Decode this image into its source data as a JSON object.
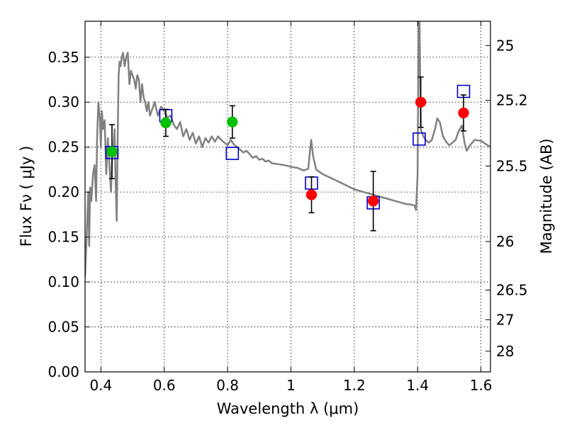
{
  "chart_data": {
    "type": "line",
    "xlabel": "Wavelength  λ (μm)",
    "ylabel": "Flux  Fν  ( μJy )",
    "y2label": "Magnitude (AB)",
    "xlim": [
      0.35,
      1.63
    ],
    "ylim": [
      0,
      0.39
    ],
    "grid": true,
    "x_ticks": [
      0.4,
      0.6,
      0.8,
      1.0,
      1.2,
      1.4,
      1.6
    ],
    "x_tick_labels": [
      "0.4",
      "0.6",
      "0.8",
      "1",
      "1.2",
      "1.4",
      "1.6"
    ],
    "y_ticks": [
      0.0,
      0.05,
      0.1,
      0.15,
      0.2,
      0.25,
      0.3,
      0.35
    ],
    "y_tick_labels": [
      "0.00",
      "0.05",
      "0.10",
      "0.15",
      "0.20",
      "0.25",
      "0.30",
      "0.35"
    ],
    "y2_ticks": [
      {
        "label": "25",
        "flux": 0.363
      },
      {
        "label": "25.2",
        "flux": 0.302
      },
      {
        "label": "25.5",
        "flux": 0.229
      },
      {
        "label": "26",
        "flux": 0.145
      },
      {
        "label": "26.5",
        "flux": 0.091
      },
      {
        "label": "27",
        "flux": 0.058
      },
      {
        "label": "28",
        "flux": 0.023
      }
    ],
    "colors": {
      "model": "#808080",
      "green_points": "#00c000",
      "red_points": "#ff0000",
      "model_boxes": "#0000cc",
      "errorbars": "#000000"
    },
    "series": [
      {
        "kind": "model-spectrum",
        "x": [
          0.35,
          0.355,
          0.36,
          0.363,
          0.366,
          0.37,
          0.375,
          0.38,
          0.385,
          0.388,
          0.392,
          0.397,
          0.4,
          0.403,
          0.407,
          0.412,
          0.417,
          0.422,
          0.427,
          0.432,
          0.436,
          0.44,
          0.443,
          0.446,
          0.45,
          0.453,
          0.456,
          0.459,
          0.462,
          0.466,
          0.47,
          0.475,
          0.48,
          0.485,
          0.49,
          0.495,
          0.5,
          0.505,
          0.51,
          0.515,
          0.52,
          0.525,
          0.53,
          0.535,
          0.54,
          0.545,
          0.55,
          0.555,
          0.56,
          0.57,
          0.58,
          0.59,
          0.6,
          0.61,
          0.62,
          0.63,
          0.64,
          0.65,
          0.66,
          0.67,
          0.68,
          0.69,
          0.7,
          0.71,
          0.72,
          0.73,
          0.74,
          0.75,
          0.76,
          0.77,
          0.78,
          0.79,
          0.8,
          0.81,
          0.82,
          0.83,
          0.84,
          0.85,
          0.86,
          0.87,
          0.88,
          0.89,
          0.9,
          0.91,
          0.92,
          0.93,
          0.94,
          0.96,
          0.98,
          1.0,
          1.02,
          1.04,
          1.055,
          1.06,
          1.064,
          1.07,
          1.08,
          1.1,
          1.13,
          1.16,
          1.2,
          1.24,
          1.28,
          1.32,
          1.36,
          1.38,
          1.39,
          1.395,
          1.4,
          1.403,
          1.406,
          1.41,
          1.418,
          1.425,
          1.435,
          1.445,
          1.455,
          1.462,
          1.47,
          1.48,
          1.49,
          1.5,
          1.51,
          1.52,
          1.53,
          1.54,
          1.548,
          1.555,
          1.565,
          1.58,
          1.6,
          1.63
        ],
        "y": [
          0.105,
          0.15,
          0.2,
          0.14,
          0.205,
          0.19,
          0.22,
          0.23,
          0.19,
          0.26,
          0.3,
          0.28,
          0.25,
          0.29,
          0.27,
          0.28,
          0.22,
          0.26,
          0.23,
          0.2,
          0.24,
          0.25,
          0.27,
          0.22,
          0.168,
          0.26,
          0.33,
          0.345,
          0.34,
          0.35,
          0.355,
          0.34,
          0.35,
          0.355,
          0.32,
          0.335,
          0.33,
          0.325,
          0.315,
          0.33,
          0.325,
          0.3,
          0.32,
          0.305,
          0.3,
          0.29,
          0.3,
          0.285,
          0.29,
          0.3,
          0.285,
          0.295,
          0.29,
          0.283,
          0.285,
          0.275,
          0.27,
          0.278,
          0.262,
          0.27,
          0.258,
          0.266,
          0.254,
          0.262,
          0.25,
          0.26,
          0.255,
          0.262,
          0.256,
          0.262,
          0.258,
          0.255,
          0.252,
          0.258,
          0.253,
          0.25,
          0.247,
          0.244,
          0.246,
          0.242,
          0.238,
          0.24,
          0.236,
          0.237,
          0.234,
          0.235,
          0.232,
          0.231,
          0.23,
          0.228,
          0.227,
          0.224,
          0.226,
          0.245,
          0.258,
          0.24,
          0.225,
          0.22,
          0.215,
          0.21,
          0.203,
          0.199,
          0.195,
          0.191,
          0.187,
          0.186,
          0.185,
          0.18,
          0.22,
          0.39,
          0.39,
          0.27,
          0.262,
          0.258,
          0.255,
          0.258,
          0.27,
          0.282,
          0.278,
          0.262,
          0.256,
          0.252,
          0.255,
          0.258,
          0.268,
          0.274,
          0.255,
          0.246,
          0.252,
          0.258,
          0.257,
          0.25
        ]
      },
      {
        "kind": "observed-green",
        "points": [
          {
            "x": 0.435,
            "y": 0.245,
            "err": 0.03
          },
          {
            "x": 0.605,
            "y": 0.277,
            "err": 0.015
          },
          {
            "x": 0.815,
            "y": 0.278,
            "err": 0.018
          }
        ]
      },
      {
        "kind": "observed-red",
        "points": [
          {
            "x": 1.065,
            "y": 0.197,
            "err": 0.02
          },
          {
            "x": 1.26,
            "y": 0.19,
            "err": 0.033
          },
          {
            "x": 1.41,
            "y": 0.3,
            "err": 0.028
          },
          {
            "x": 1.545,
            "y": 0.288,
            "err": 0.02
          }
        ]
      },
      {
        "kind": "model-boxes",
        "points": [
          {
            "x": 0.435,
            "y": 0.244
          },
          {
            "x": 0.605,
            "y": 0.285
          },
          {
            "x": 0.815,
            "y": 0.243
          },
          {
            "x": 1.065,
            "y": 0.21
          },
          {
            "x": 1.26,
            "y": 0.188
          },
          {
            "x": 1.405,
            "y": 0.259
          },
          {
            "x": 1.545,
            "y": 0.312
          }
        ]
      }
    ]
  }
}
